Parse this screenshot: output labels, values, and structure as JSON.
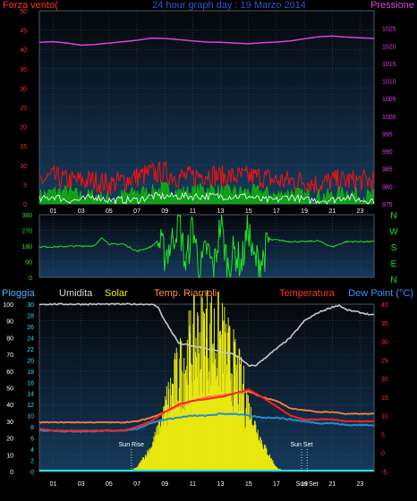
{
  "colors": {
    "background": "#000000",
    "plot_top": "#06080c",
    "plot_bottom": "#153a5c",
    "grid": "#3f5468",
    "wind_label": "#ff3030",
    "title": "#2b56d6",
    "pressure": "#e040e0",
    "gust": "#ff1010",
    "wind_avg": "#10b010",
    "wind_white": "#ffffff",
    "direction": "#20e020",
    "rain_label": "#40b8ff",
    "humidity_label": "#d8d8d8",
    "humidity": "#c8c8c8",
    "solar_label": "#f0f000",
    "solar": "#e8e810",
    "apparent_label": "#ff8c40",
    "apparent": "#ff8040",
    "temp_label": "#ff3030",
    "temp": "#ff2020",
    "dew_label": "#4090ff",
    "dew": "#2090d0",
    "rain": "#20e0e0",
    "tick_white": "#ffffff",
    "axis_red": "#ff3030",
    "axis_green": "#20e020",
    "axis_cyan": "#30e0ff"
  },
  "header": {
    "wind_label": "Forza vento",
    "wind_unit": "(",
    "title": "24 hour graph day : 19 Marzo 2014",
    "pressure_label": "Pressione"
  },
  "chart_data": [
    {
      "id": "wind",
      "type": "line",
      "series": [
        {
          "name": "Forza vento",
          "x": [
            0,
            1,
            2,
            3,
            4,
            5,
            6,
            7,
            8,
            9,
            10,
            11,
            12,
            13,
            14,
            15,
            16,
            17,
            18,
            19,
            20,
            21,
            22,
            23,
            24
          ],
          "values": [
            6,
            7,
            6,
            6,
            6,
            5,
            6,
            7,
            8,
            8,
            7,
            7,
            8,
            7,
            7,
            7,
            7,
            6,
            6,
            6,
            5,
            6,
            6,
            6,
            6
          ],
          "axis": "left",
          "style": "gust"
        },
        {
          "name": "",
          "x": [
            0,
            1,
            2,
            3,
            4,
            5,
            6,
            7,
            8,
            9,
            10,
            11,
            12,
            13,
            14,
            15,
            16,
            17,
            18,
            19,
            20,
            21,
            22,
            23,
            24
          ],
          "values": [
            2,
            3,
            3,
            2,
            2,
            1,
            2,
            3,
            3,
            4,
            3,
            3,
            4,
            3,
            3,
            3,
            3,
            2,
            3,
            2,
            2,
            2,
            3,
            2,
            2
          ],
          "axis": "left",
          "style": "avg"
        },
        {
          "name": "",
          "x": [
            0,
            1,
            2,
            3,
            4,
            5,
            6,
            7,
            8,
            9,
            10,
            11,
            12,
            13,
            14,
            15,
            16,
            17,
            18,
            19,
            20,
            21,
            22,
            23,
            24
          ],
          "values": [
            1,
            2,
            1,
            1,
            2,
            1,
            1,
            1,
            2,
            2,
            2,
            2,
            2,
            2,
            2,
            2,
            1,
            1,
            2,
            1,
            1,
            1,
            2,
            1,
            1
          ],
          "axis": "left",
          "style": "white"
        },
        {
          "name": "Pressione",
          "x": [
            0,
            1,
            2,
            3,
            4,
            5,
            6,
            7,
            8,
            9,
            10,
            11,
            12,
            13,
            14,
            15,
            16,
            17,
            18,
            19,
            20,
            21,
            22,
            23,
            24
          ],
          "values": [
            1021.0,
            1021.2,
            1020.8,
            1020.2,
            1020.4,
            1020.8,
            1021.2,
            1021.6,
            1022.2,
            1022.1,
            1021.8,
            1021.4,
            1021.1,
            1021.0,
            1020.8,
            1020.6,
            1020.9,
            1021.1,
            1021.4,
            1022.0,
            1022.6,
            1022.8,
            1022.5,
            1022.3,
            1022.1
          ],
          "axis": "right",
          "style": "pressure"
        }
      ],
      "xlim": [
        0,
        24
      ],
      "ylim": [
        0,
        50
      ],
      "ylim_right": [
        975,
        1030
      ],
      "x_ticks": [
        "01",
        "03",
        "05",
        "07",
        "09",
        "11",
        "13",
        "15",
        "17",
        "19",
        "21",
        "23"
      ],
      "y_ticks": [
        "0",
        "5",
        "10",
        "15",
        "20",
        "25",
        "30",
        "35",
        "40",
        "45",
        "50"
      ],
      "y_right_ticks": [
        "975",
        "980",
        "985",
        "990",
        "995",
        "1000",
        "1005",
        "1010",
        "1015",
        "1020",
        "1025"
      ],
      "grid": true
    },
    {
      "id": "direction",
      "type": "line",
      "series": [
        {
          "name": "",
          "x": [
            0,
            1,
            2,
            3,
            4,
            4.5,
            5,
            6,
            7,
            8,
            8.5,
            9,
            9.5,
            10,
            10.5,
            11,
            11.5,
            12,
            12.5,
            13,
            13.5,
            14,
            14.5,
            15,
            15.3,
            16,
            16.5,
            17,
            17.5,
            18,
            19,
            20,
            21,
            22,
            23,
            24
          ],
          "values": [
            175,
            175,
            178,
            180,
            182,
            230,
            190,
            192,
            150,
            175,
            210,
            130,
            200,
            340,
            60,
            310,
            20,
            170,
            40,
            320,
            60,
            150,
            70,
            300,
            100,
            100,
            215,
            215,
            210,
            205,
            205,
            210,
            175,
            205,
            205,
            205
          ],
          "style": "direction"
        }
      ],
      "xlim": [
        0,
        24
      ],
      "ylim": [
        0,
        360
      ],
      "y_ticks": [
        "0",
        "90",
        "180",
        "270",
        "360"
      ],
      "compass": [
        "N",
        "W",
        "S",
        "E",
        "N"
      ],
      "grid": true
    },
    {
      "id": "meteo",
      "type": "line",
      "legend": {
        "rain": "Pioggia",
        "humidity": "Umidita",
        "solar": "Solar",
        "apparent": "Temp. Riarnoli",
        "temp": "Temperatura",
        "dew": "Dew Point (°C)"
      },
      "series": [
        {
          "name": "Umidita",
          "x": [
            0,
            1,
            2,
            3,
            4,
            5,
            6,
            7,
            8,
            8.5,
            9,
            10,
            11,
            12,
            13,
            14,
            14.5,
            15,
            15.5,
            16,
            17,
            18,
            19,
            20,
            21,
            21.5,
            22,
            23,
            24
          ],
          "values": [
            30,
            30,
            30,
            30,
            30,
            30,
            30,
            30,
            30,
            29.5,
            27,
            23,
            22.5,
            22,
            21.5,
            21,
            20,
            19,
            19,
            20,
            22,
            24,
            27,
            28.5,
            29.5,
            29.8,
            29,
            28.5,
            28
          ],
          "axis": "left_humidity",
          "style": "humidity"
        },
        {
          "name": "Solar",
          "x": [
            0,
            6,
            6.5,
            7,
            8,
            9,
            10,
            11,
            12,
            13,
            14,
            15,
            16,
            17,
            17.5,
            18,
            24
          ],
          "values": [
            0,
            0,
            2,
            10,
            60,
            150,
            240,
            310,
            340,
            320,
            250,
            160,
            70,
            10,
            2,
            0,
            0
          ],
          "axis": "solar",
          "style": "solar"
        },
        {
          "name": "Temp. Riarnoli",
          "x": [
            0,
            1,
            2,
            3,
            4,
            5,
            6,
            7,
            8,
            9,
            10,
            11,
            12,
            13,
            14,
            15,
            16,
            17,
            18,
            19,
            20,
            21,
            22,
            23,
            24
          ],
          "values": [
            8.2,
            8.2,
            8.2,
            8.2,
            8.2,
            8.2,
            8.2,
            8.5,
            9.5,
            11,
            12.5,
            14,
            15,
            15.5,
            16,
            16.5,
            15,
            14,
            12,
            11.5,
            11,
            11,
            10.5,
            10.5,
            10.5
          ],
          "axis": "right_temp",
          "style": "apparent"
        },
        {
          "name": "Temperatura",
          "x": [
            0,
            1,
            2,
            3,
            4,
            5,
            6,
            7,
            8,
            9,
            10,
            11,
            12,
            13,
            14,
            15,
            16,
            17,
            18,
            19,
            20,
            21,
            22,
            23,
            24
          ],
          "values": [
            6.5,
            6,
            6,
            6,
            6,
            6,
            6,
            7,
            8.5,
            11,
            13,
            14,
            14.5,
            15,
            16,
            17,
            15,
            12.5,
            10,
            9,
            9,
            9,
            8.5,
            8.5,
            8.5
          ],
          "axis": "right_temp",
          "style": "temp"
        },
        {
          "name": "Dew Point (°C)",
          "x": [
            0,
            1,
            2,
            3,
            4,
            5,
            6,
            7,
            8,
            9,
            10,
            11,
            12,
            13,
            14,
            15,
            16,
            17,
            18,
            19,
            20,
            21,
            22,
            23,
            24
          ],
          "values": [
            6,
            6,
            5.8,
            5.8,
            5.8,
            6,
            6,
            6.5,
            8,
            9,
            9.5,
            10,
            10,
            10.5,
            10.5,
            10,
            9.5,
            9.5,
            9,
            8.5,
            8,
            8,
            7.5,
            7.5,
            7.5
          ],
          "axis": "right_temp",
          "style": "dew"
        },
        {
          "name": "Pioggia",
          "x": [
            0,
            24
          ],
          "values": [
            0,
            0
          ],
          "axis": "left_rain",
          "style": "rain"
        }
      ],
      "xlim": [
        0,
        24
      ],
      "ylim_rain": [
        0,
        100
      ],
      "ylim_humidity": [
        0,
        30
      ],
      "ylim_temp": [
        -5,
        40
      ],
      "rain_ticks": [
        "0",
        "10",
        "20",
        "30",
        "40",
        "50",
        "60",
        "70",
        "80",
        "90",
        "100"
      ],
      "humidity_ticks": [
        "0",
        "2",
        "4",
        "6",
        "8",
        "10",
        "12",
        "14",
        "16",
        "18",
        "20",
        "22",
        "24",
        "26",
        "28",
        "30"
      ],
      "temp_ticks": [
        "-5",
        "0",
        "5",
        "10",
        "15",
        "20",
        "25",
        "30",
        "35",
        "40"
      ],
      "x_ticks": [
        "01",
        "03",
        "05",
        "07",
        "09",
        "11",
        "13",
        "15",
        "17",
        "19",
        "21",
        "23"
      ],
      "annotations": [
        {
          "text": "Sun Rise",
          "x": 6.6
        },
        {
          "text": "Sun Set",
          "x": 18.8
        },
        {
          "text": "Sun Set",
          "x": 19.2
        }
      ],
      "grid": true
    }
  ]
}
